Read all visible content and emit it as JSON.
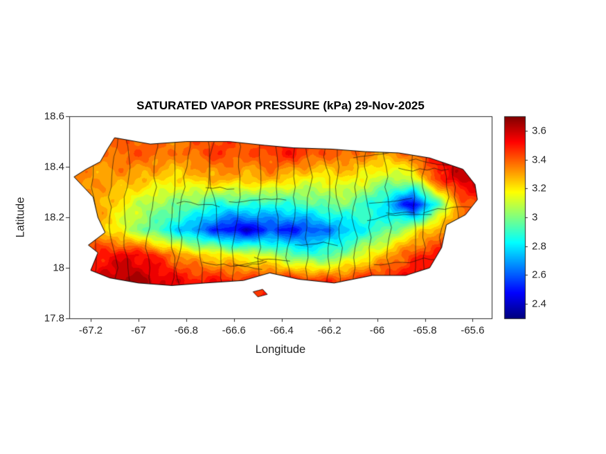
{
  "chart_data": {
    "type": "heatmap",
    "title": "SATURATED VAPOR PRESSURE (kPa) 29-Nov-2025",
    "xlabel": "Longitude",
    "ylabel": "Latitude",
    "region": "Puerto Rico",
    "units": "kPa",
    "xlim": [
      -67.29,
      -65.52
    ],
    "ylim": [
      17.8,
      18.6
    ],
    "xticks": [
      -67.2,
      -67,
      -66.8,
      -66.6,
      -66.4,
      -66.2,
      -66,
      -65.8,
      -65.6
    ],
    "xtick_labels": [
      "-67.2",
      "-67",
      "-66.8",
      "-66.6",
      "-66.4",
      "-66.2",
      "-66",
      "-65.8",
      "-65.6"
    ],
    "yticks": [
      17.8,
      18,
      18.2,
      18.4,
      18.6
    ],
    "ytick_labels": [
      "17.8",
      "18",
      "18.2",
      "18.4",
      "18.6"
    ],
    "colorbar": {
      "colormap": "jet",
      "range": [
        2.3,
        3.7
      ],
      "ticks": [
        2.4,
        2.6,
        2.8,
        3,
        3.2,
        3.4,
        3.6
      ],
      "tick_labels": [
        "2.4",
        "2.6",
        "2.8",
        "3",
        "3.2",
        "3.4",
        "3.6"
      ],
      "position": "right"
    },
    "grid": {
      "lons": [
        -67.25,
        -67.15,
        -67.05,
        -66.95,
        -66.85,
        -66.75,
        -66.65,
        -66.55,
        -66.45,
        -66.35,
        -66.25,
        -66.15,
        -66.05,
        -65.95,
        -65.85,
        -65.75,
        -65.65,
        -65.55
      ],
      "lats": [
        17.95,
        18.05,
        18.15,
        18.25,
        18.35,
        18.45
      ],
      "values": [
        [
          3.5,
          3.6,
          3.65,
          3.6,
          3.55,
          3.5,
          3.5,
          3.45,
          3.5,
          3.5,
          3.45,
          3.45,
          3.5,
          3.5,
          3.55,
          3.5,
          3.5,
          3.5
        ],
        [
          3.45,
          3.5,
          3.55,
          3.5,
          3.35,
          3.25,
          3.2,
          3.15,
          3.1,
          2.95,
          2.9,
          3.0,
          3.15,
          3.3,
          3.45,
          3.5,
          3.5,
          3.5
        ],
        [
          3.35,
          3.25,
          3.1,
          2.95,
          2.8,
          2.65,
          2.5,
          2.4,
          2.55,
          2.5,
          2.6,
          2.7,
          2.85,
          2.95,
          3.15,
          3.3,
          3.45,
          3.5
        ],
        [
          3.35,
          3.3,
          3.15,
          3.05,
          3.0,
          2.95,
          2.85,
          2.9,
          2.85,
          2.9,
          2.95,
          3.0,
          2.9,
          2.75,
          2.4,
          2.9,
          3.35,
          3.5
        ],
        [
          3.35,
          3.3,
          3.3,
          3.25,
          3.2,
          3.25,
          3.3,
          3.25,
          3.3,
          3.2,
          3.15,
          3.2,
          3.15,
          3.05,
          3.1,
          3.45,
          3.6,
          3.6
        ],
        [
          3.3,
          3.35,
          3.4,
          3.4,
          3.35,
          3.4,
          3.45,
          3.4,
          3.45,
          3.5,
          3.4,
          3.4,
          3.35,
          3.3,
          3.4,
          3.55,
          3.6,
          3.6
        ]
      ]
    },
    "island_outline": [
      [
        -67.13,
        18.47
      ],
      [
        -67.1,
        18.515
      ],
      [
        -66.95,
        18.49
      ],
      [
        -66.8,
        18.5
      ],
      [
        -66.62,
        18.5
      ],
      [
        -66.47,
        18.485
      ],
      [
        -66.35,
        18.475
      ],
      [
        -66.19,
        18.47
      ],
      [
        -66.05,
        18.46
      ],
      [
        -65.91,
        18.455
      ],
      [
        -65.78,
        18.435
      ],
      [
        -65.64,
        18.39
      ],
      [
        -65.59,
        18.33
      ],
      [
        -65.58,
        18.27
      ],
      [
        -65.63,
        18.21
      ],
      [
        -65.71,
        18.17
      ],
      [
        -65.73,
        18.08
      ],
      [
        -65.78,
        18.0
      ],
      [
        -65.88,
        17.97
      ],
      [
        -66.02,
        17.97
      ],
      [
        -66.18,
        17.94
      ],
      [
        -66.33,
        17.955
      ],
      [
        -66.45,
        17.98
      ],
      [
        -66.56,
        17.95
      ],
      [
        -66.72,
        17.94
      ],
      [
        -66.86,
        17.93
      ],
      [
        -67.0,
        17.94
      ],
      [
        -67.12,
        17.96
      ],
      [
        -67.2,
        17.99
      ],
      [
        -67.17,
        18.06
      ],
      [
        -67.21,
        18.09
      ],
      [
        -67.14,
        18.14
      ],
      [
        -67.17,
        18.2
      ],
      [
        -67.19,
        18.28
      ],
      [
        -67.27,
        18.36
      ],
      [
        -67.22,
        18.39
      ],
      [
        -67.16,
        18.42
      ]
    ],
    "islets": [
      [
        [
          -66.52,
          17.905
        ],
        [
          -66.48,
          17.915
        ],
        [
          -66.46,
          17.895
        ],
        [
          -66.5,
          17.885
        ]
      ]
    ],
    "municipal_boundaries": true
  }
}
